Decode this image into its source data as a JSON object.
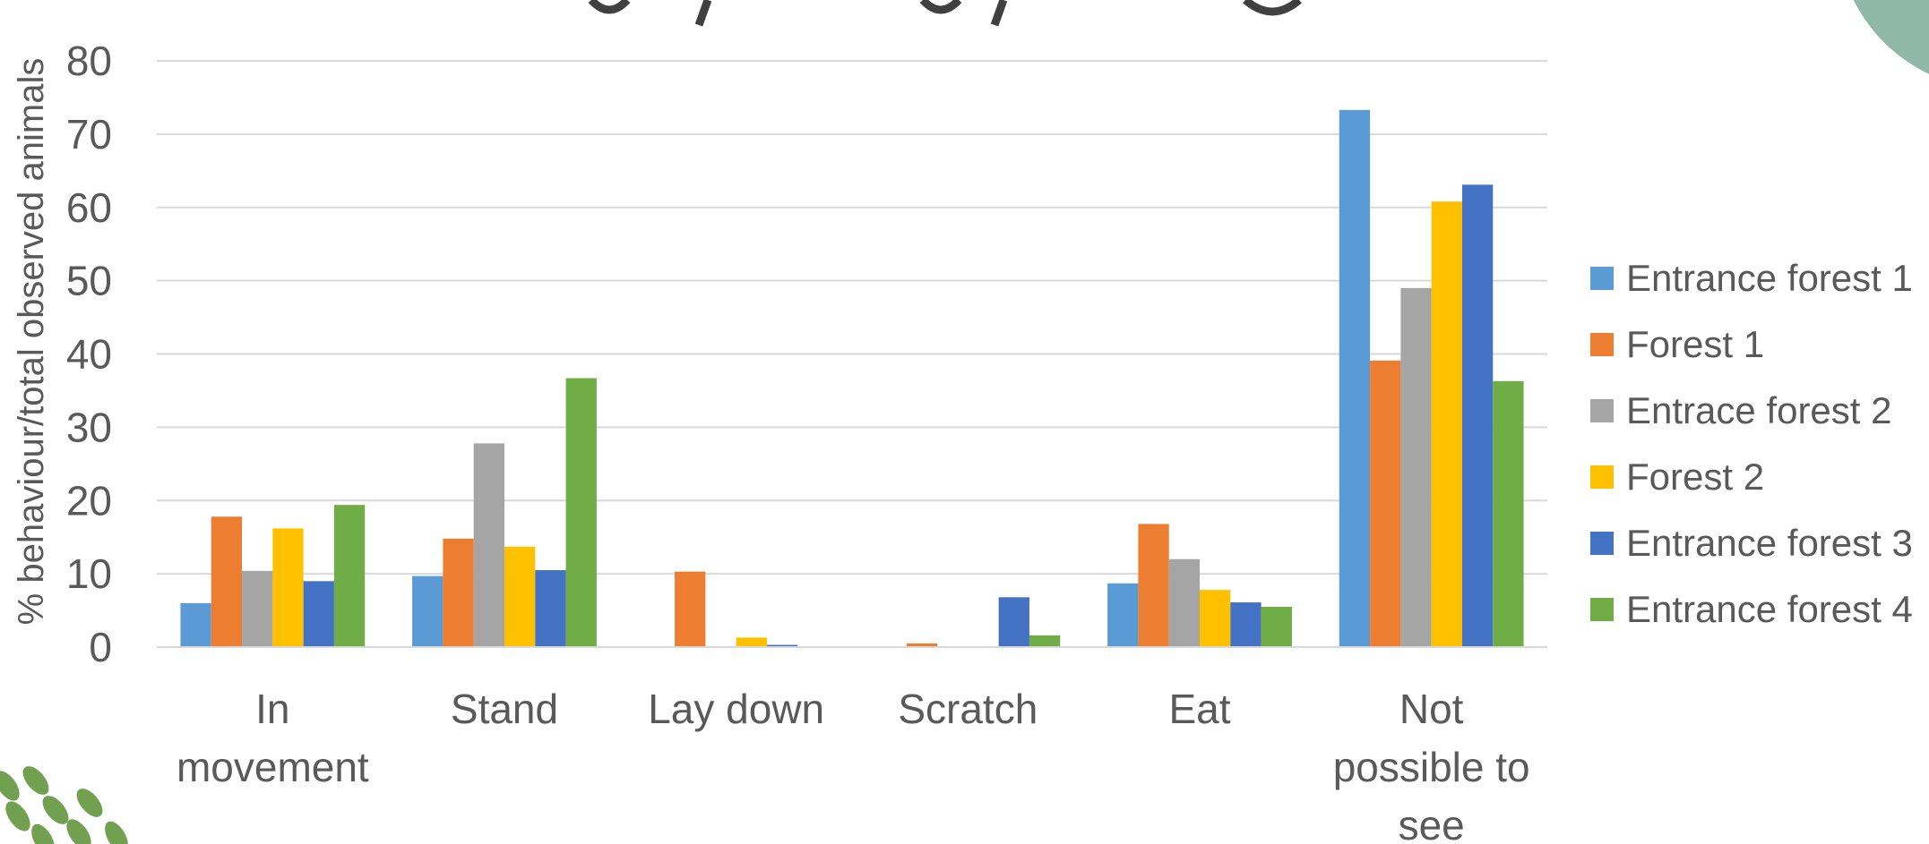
{
  "chart_data": {
    "type": "bar",
    "title": "",
    "xlabel": "",
    "ylabel": "% behaviour/total observed animals",
    "ylim": [
      0,
      80
    ],
    "yticks": [
      0,
      10,
      20,
      30,
      40,
      50,
      60,
      70,
      80
    ],
    "grid": true,
    "legend_position": "right",
    "categories": [
      [
        "In",
        "movement"
      ],
      [
        "Stand"
      ],
      [
        "Lay down"
      ],
      [
        "Scratch"
      ],
      [
        "Eat"
      ],
      [
        "Not",
        "possible to",
        "see"
      ]
    ],
    "series": [
      {
        "name": "Entrance forest 1",
        "color": "#5b9bd5",
        "values": [
          6,
          9.7,
          0,
          0,
          8.7,
          73.3
        ]
      },
      {
        "name": "Forest 1",
        "color": "#ed7d31",
        "values": [
          17.8,
          14.8,
          10.3,
          0.5,
          16.8,
          39.1
        ]
      },
      {
        "name": "Entrace forest 2",
        "color": "#a5a5a5",
        "values": [
          10.4,
          27.8,
          0,
          0,
          12,
          49
        ]
      },
      {
        "name": "Forest 2",
        "color": "#ffc000",
        "values": [
          16.2,
          13.7,
          1.3,
          0,
          7.8,
          60.8
        ]
      },
      {
        "name": "Entrance forest 3",
        "color": "#4472c4",
        "values": [
          9,
          10.5,
          0.3,
          6.8,
          6.1,
          63.1
        ]
      },
      {
        "name": "Entrance forest 4",
        "color": "#70ad47",
        "values": [
          19.4,
          36.7,
          0,
          1.6,
          5.5,
          36.3
        ]
      }
    ]
  },
  "decor": {
    "leaf_color": "#70a050",
    "corner_circle_color": "#8fb8a8"
  }
}
